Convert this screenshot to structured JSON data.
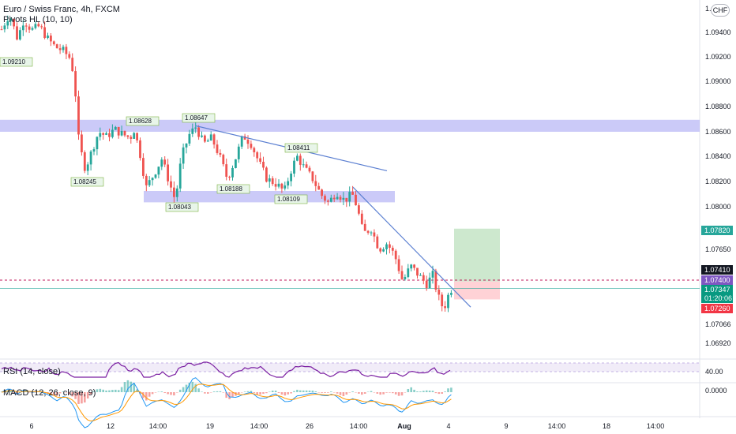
{
  "header": {
    "title": "Euro / Swiss Franc, 4h, FXCM",
    "indicator": "Pivots HL (10, 10)"
  },
  "currency_badge": "CHF",
  "top_axis_label": "1.",
  "rsi_legend": "RSI (14, close)",
  "macd_legend": "MACD (12, 26, close, 9)",
  "rsi_axis_label": "40.00",
  "macd_axis_label": "0.0000",
  "colors": {
    "up": "#26a69a",
    "down": "#ef5350",
    "zone": "#b9b8f5",
    "trendline": "#5b7fd1",
    "target": "#c8e6c9",
    "stop": "#ffcdd2",
    "rsi": "#7b1fa2",
    "macd": "#2196f3",
    "signal": "#ff9800"
  },
  "chart_data": {
    "type": "candlestick",
    "title": "Euro / Swiss Franc, 4h, FXCM",
    "y_ticks": [
      "1.09400",
      "1.09200",
      "1.09000",
      "1.08800",
      "1.08600",
      "1.08400",
      "1.08200",
      "1.08000",
      "1.07650",
      "1.07066",
      "1.06920"
    ],
    "x_ticks": [
      "6",
      "12",
      "14:00",
      "19",
      "14:00",
      "26",
      "14:00",
      "Aug",
      "4",
      "9",
      "14:00",
      "18",
      "14:00"
    ],
    "price_labels": [
      {
        "label": "1.07820",
        "color": "#26a69a"
      },
      {
        "label": "1.07410",
        "color": "#131722"
      },
      {
        "label": "1.07400",
        "color": "#7e57c2"
      },
      {
        "label": "1.07347",
        "color": "#089981"
      },
      {
        "label": "01:20:06",
        "color": "#089981"
      },
      {
        "label": "1.07260",
        "color": "#f23645"
      }
    ],
    "pivot_labels": [
      "1.09210",
      "1.08628",
      "1.08647",
      "1.08245",
      "1.08188",
      "1.08043",
      "1.08411",
      "1.08109"
    ],
    "path": [
      [
        0,
        1.094
      ],
      [
        12,
        1.0955
      ],
      [
        22,
        1.0935
      ],
      [
        30,
        1.095
      ],
      [
        40,
        1.0942
      ],
      [
        50,
        1.0945
      ],
      [
        60,
        1.0935
      ],
      [
        70,
        1.0928
      ],
      [
        80,
        1.0925
      ],
      [
        90,
        1.0918
      ],
      [
        95,
        1.0895
      ],
      [
        100,
        1.085
      ],
      [
        108,
        1.083
      ],
      [
        115,
        1.0842
      ],
      [
        125,
        1.086
      ],
      [
        135,
        1.0856
      ],
      [
        145,
        1.0862
      ],
      [
        155,
        1.0858
      ],
      [
        165,
        1.0855
      ],
      [
        170,
        1.0862
      ],
      [
        178,
        1.084
      ],
      [
        185,
        1.0815
      ],
      [
        195,
        1.0826
      ],
      [
        205,
        1.0838
      ],
      [
        215,
        1.0818
      ],
      [
        222,
        1.0805
      ],
      [
        230,
        1.084
      ],
      [
        240,
        1.0858
      ],
      [
        248,
        1.0864
      ],
      [
        258,
        1.085
      ],
      [
        268,
        1.0855
      ],
      [
        278,
        1.084
      ],
      [
        288,
        1.0822
      ],
      [
        298,
        1.0838
      ],
      [
        308,
        1.0857
      ],
      [
        318,
        1.085
      ],
      [
        328,
        1.0835
      ],
      [
        338,
        1.0822
      ],
      [
        350,
        1.0818
      ],
      [
        360,
        1.0812
      ],
      [
        368,
        1.0828
      ],
      [
        376,
        1.084
      ],
      [
        386,
        1.083
      ],
      [
        396,
        1.0822
      ],
      [
        406,
        1.081
      ],
      [
        416,
        1.0803
      ],
      [
        426,
        1.0812
      ],
      [
        436,
        1.0805
      ],
      [
        446,
        1.081
      ],
      [
        452,
        1.08
      ],
      [
        460,
        1.0778
      ],
      [
        470,
        1.0782
      ],
      [
        480,
        1.0765
      ],
      [
        490,
        1.077
      ],
      [
        500,
        1.076
      ],
      [
        510,
        1.074
      ],
      [
        520,
        1.0752
      ],
      [
        530,
        1.0745
      ],
      [
        540,
        1.0738
      ],
      [
        548,
        1.0745
      ],
      [
        555,
        1.0728
      ],
      [
        562,
        1.0718
      ],
      [
        566,
        1.0727
      ],
      [
        572,
        1.07347
      ]
    ],
    "zones": [
      {
        "x0": 0,
        "x1": 886,
        "y0": 1.08695,
        "y1": 1.086
      },
      {
        "x0": 182,
        "x1": 500,
        "y0": 1.08125,
        "y1": 1.08035
      }
    ],
    "trendlines": [
      {
        "x0": 248,
        "y0": 1.08647,
        "x1": 490,
        "y1": 1.08285
      },
      {
        "x0": 447,
        "y0": 1.08155,
        "x1": 596,
        "y1": 1.072
      }
    ],
    "position": {
      "x0": 575,
      "x1": 633,
      "entry": 1.074,
      "target": 1.0782,
      "stop": 1.0726
    },
    "rsi_level": 40,
    "macd_zero": 0
  }
}
